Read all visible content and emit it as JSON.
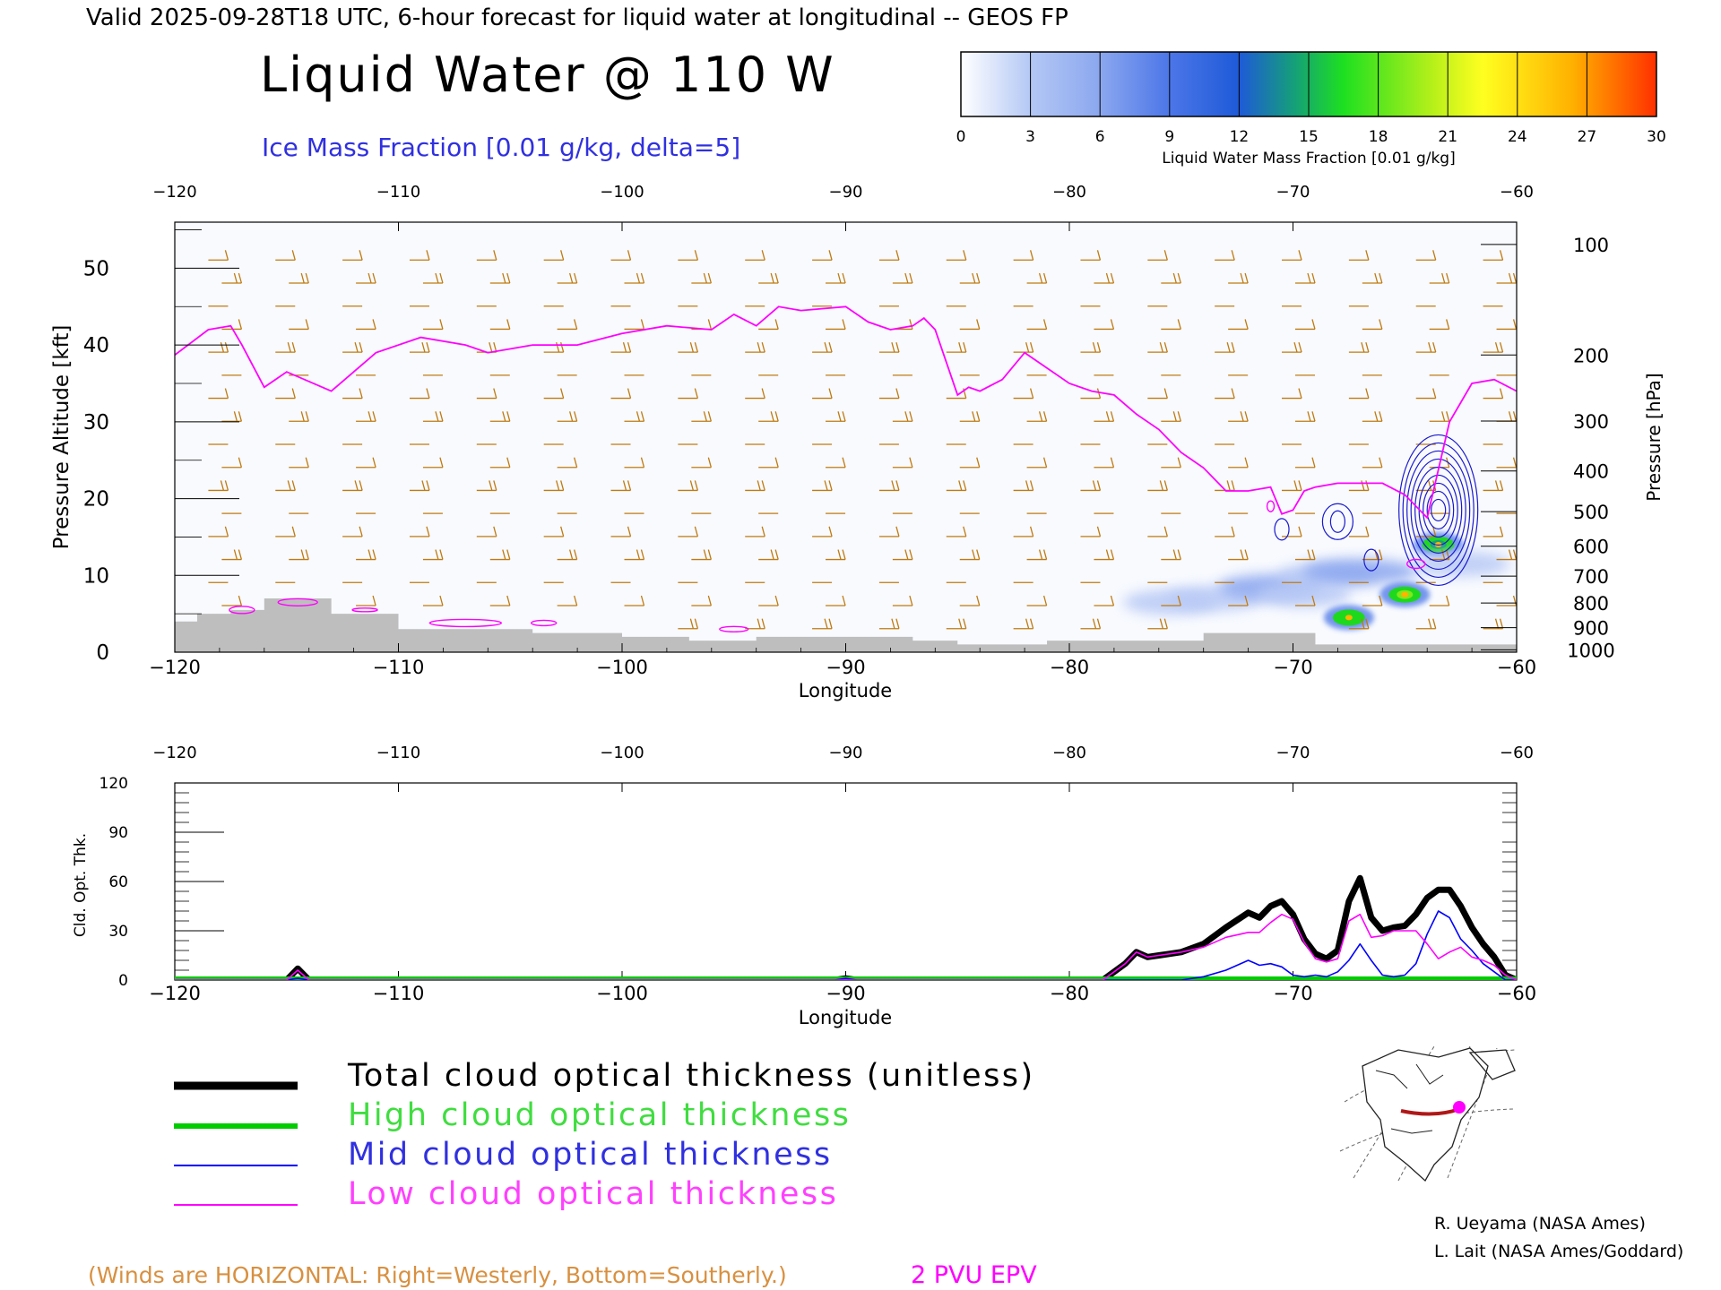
{
  "header": {
    "valid_line": "Valid 2025-09-28T18 UTC, 6-hour forecast for liquid water at longitudinal -- GEOS FP",
    "title": "Liquid Water @ 110 W",
    "ice_label": "Ice Mass Fraction [0.01 g/kg, delta=5]"
  },
  "colorbar": {
    "ticks": [
      "0",
      "3",
      "6",
      "9",
      "12",
      "15",
      "18",
      "21",
      "24",
      "27",
      "30"
    ],
    "label": "Liquid Water Mass Fraction [0.01 g/kg]",
    "colors": [
      "#f2f5fc",
      "#b8c9f5",
      "#8aa6ef",
      "#4a74e6",
      "#1f5ed6",
      "#13a07a",
      "#1ed81e",
      "#7fe81a",
      "#f0f020",
      "#ffb400",
      "#ff5a00"
    ]
  },
  "colors": {
    "wind": "#c07a10",
    "epv": "#ff00ff",
    "ice": "#1a1acc",
    "terrain": "#bebebe",
    "total": "#000000",
    "high": "#00cc00",
    "mid": "#0000ff",
    "low": "#ff00ff"
  },
  "chart_data": [
    {
      "type": "heatmap",
      "xlabel": "Longitude",
      "ylabel": "Pressure Altitude [kft]",
      "y2label": "Pressure [hPa]",
      "xlim": [
        -120,
        -60
      ],
      "ylim": [
        0,
        56
      ],
      "x_ticks": [
        "−120",
        "−110",
        "−100",
        "−90",
        "−80",
        "−70",
        "−60"
      ],
      "x_tick_values": [
        -120,
        -110,
        -100,
        -90,
        -80,
        -70,
        -60
      ],
      "y_ticks": [
        "0",
        "10",
        "20",
        "30",
        "40",
        "50"
      ],
      "y_tick_values": [
        0,
        10,
        20,
        30,
        40,
        50
      ],
      "pressure_ticks": [
        {
          "label": "100",
          "kft": 53.1
        },
        {
          "label": "200",
          "kft": 38.7
        },
        {
          "label": "300",
          "kft": 30.1
        },
        {
          "label": "400",
          "kft": 23.6
        },
        {
          "label": "500",
          "kft": 18.3
        },
        {
          "label": "600",
          "kft": 13.8
        },
        {
          "label": "700",
          "kft": 9.9
        },
        {
          "label": "800",
          "kft": 6.4
        },
        {
          "label": "900",
          "kft": 3.2
        },
        {
          "label": "1000",
          "kft": 0.3
        }
      ],
      "epv_2pvu_tropopause": {
        "lon": [
          -120,
          -118.5,
          -117.5,
          -117,
          -116,
          -115,
          -113,
          -111,
          -109,
          -107,
          -106,
          -104,
          -102,
          -100,
          -98,
          -96,
          -95,
          -94,
          -93,
          -92,
          -90,
          -89,
          -88,
          -87,
          -86.5,
          -86,
          -85,
          -84.5,
          -84,
          -83,
          -82,
          -81,
          -80,
          -79,
          -78,
          -77,
          -76,
          -75,
          -74,
          -73,
          -72,
          -71,
          -70.5,
          -70,
          -69.5,
          -69,
          -68,
          -67,
          -66,
          -65,
          -64,
          -63,
          -62,
          -61,
          -60
        ],
        "kft": [
          38.7,
          42,
          42.5,
          40,
          34.5,
          36.5,
          34,
          39,
          41,
          40,
          39,
          40,
          40,
          41.5,
          42.5,
          42,
          44,
          42.5,
          45,
          44.5,
          45,
          43,
          42,
          42.5,
          43.5,
          42,
          33.5,
          34.5,
          34,
          35.5,
          39,
          37,
          35,
          34,
          33.5,
          31,
          29,
          26,
          24,
          21,
          21,
          21.5,
          18,
          18.5,
          21,
          21.5,
          22,
          22,
          22,
          20.5,
          17.5,
          30,
          35,
          35.5,
          34
        ]
      },
      "terrain_steps": {
        "lon": [
          -120,
          -119,
          -117.5,
          -116,
          -114,
          -113,
          -110,
          -107,
          -104,
          -100,
          -97,
          -94,
          -90,
          -87,
          -85,
          -83,
          -81,
          -79,
          -74,
          -70,
          -69,
          -60
        ],
        "kft": [
          4,
          5,
          5.5,
          7,
          7,
          5,
          3,
          3,
          2.5,
          2,
          1.5,
          2,
          2,
          1.5,
          1,
          1,
          1.5,
          1.5,
          2.5,
          2.5,
          1,
          1
        ]
      },
      "liquid_water_blobs": [
        {
          "lon": -75.5,
          "kft": 6.5,
          "value": 4
        },
        {
          "lon": -73.5,
          "kft": 7,
          "value": 5
        },
        {
          "lon": -71,
          "kft": 8.5,
          "value": 6
        },
        {
          "lon": -69.5,
          "kft": 7.5,
          "value": 4
        },
        {
          "lon": -68.5,
          "kft": 10,
          "value": 5
        },
        {
          "lon": -67,
          "kft": 10.5,
          "value": 8
        },
        {
          "lon": -67.5,
          "kft": 4.5,
          "value": 20
        },
        {
          "lon": -65,
          "kft": 7.5,
          "value": 22
        },
        {
          "lon": -63.5,
          "kft": 14,
          "value": 17
        },
        {
          "lon": -62.5,
          "kft": 11.5,
          "value": 5
        }
      ],
      "ice_contour_centers": [
        {
          "lon": -63.5,
          "kft": 18.5,
          "max": 45
        },
        {
          "lon": -68,
          "kft": 17,
          "max": 10
        },
        {
          "lon": -70.5,
          "kft": 16,
          "max": 5
        },
        {
          "lon": -66.5,
          "kft": 12,
          "max": 5
        }
      ],
      "winds_note": "(Winds are HORIZONTAL: Right=Westerly, Bottom=Southerly.)",
      "epv_label": "2 PVU EPV"
    },
    {
      "type": "line",
      "xlabel": "Longitude",
      "ylabel": "Cld. Opt. Thk.",
      "xlim": [
        -120,
        -60
      ],
      "ylim": [
        0,
        120
      ],
      "x_ticks": [
        "−120",
        "−110",
        "−100",
        "−90",
        "−80",
        "−70",
        "−60"
      ],
      "x_tick_values": [
        -120,
        -110,
        -100,
        -90,
        -80,
        -70,
        -60
      ],
      "y_ticks": [
        "0",
        "30",
        "60",
        "90",
        "120"
      ],
      "y_tick_values": [
        0,
        30,
        60,
        90,
        120
      ],
      "x": [
        -120,
        -115,
        -114.5,
        -114,
        -113.5,
        -100,
        -90.5,
        -90,
        -89.5,
        -80,
        -78.5,
        -77.5,
        -77,
        -76.5,
        -76,
        -75.5,
        -75,
        -74,
        -73,
        -72,
        -71.5,
        -71,
        -70.5,
        -70,
        -69.5,
        -69,
        -68.5,
        -68,
        -67.5,
        -67,
        -66.5,
        -66,
        -65.5,
        -65,
        -64.5,
        -64,
        -63.5,
        -63,
        -62.5,
        -62,
        -61.5,
        -61,
        -60.5,
        -60
      ],
      "series": [
        {
          "name": "Total cloud optical thickness (unitless)",
          "values": [
            0,
            0,
            7,
            0,
            0,
            0,
            0,
            1,
            0,
            0,
            0,
            10,
            17,
            14,
            15,
            16,
            17,
            22,
            32,
            41,
            38,
            45,
            48,
            40,
            25,
            16,
            13,
            18,
            48,
            62,
            38,
            30,
            32,
            33,
            40,
            50,
            55,
            55,
            45,
            32,
            22,
            14,
            3,
            0
          ]
        },
        {
          "name": "High cloud optical thickness",
          "values": [
            0,
            0,
            0,
            0,
            0,
            0,
            0,
            0,
            0,
            0,
            0,
            0,
            0,
            0,
            0,
            0,
            0,
            0,
            0,
            0,
            0,
            0,
            0,
            0,
            0,
            0,
            0,
            0,
            0,
            0,
            0,
            0,
            0,
            0,
            0,
            0,
            0,
            0,
            0,
            0,
            0,
            0,
            0,
            0
          ]
        },
        {
          "name": "Mid cloud optical thickness",
          "values": [
            0,
            0,
            1,
            0,
            0,
            0,
            0,
            1,
            0,
            0,
            0,
            0,
            0,
            0,
            0,
            0,
            0,
            2,
            6,
            12,
            9,
            10,
            8,
            3,
            2,
            3,
            2,
            5,
            12,
            22,
            12,
            3,
            2,
            3,
            10,
            28,
            42,
            38,
            25,
            18,
            10,
            5,
            0,
            0
          ]
        },
        {
          "name": "Low cloud optical thickness",
          "values": [
            0,
            0,
            6,
            0,
            0,
            0,
            0,
            0,
            0,
            0,
            0,
            10,
            17,
            14,
            15,
            16,
            17,
            20,
            26,
            29,
            29,
            35,
            40,
            37,
            23,
            13,
            11,
            13,
            36,
            40,
            26,
            27,
            30,
            30,
            30,
            22,
            13,
            17,
            20,
            14,
            12,
            9,
            3,
            0
          ]
        }
      ]
    }
  ],
  "legend": {
    "total": "Total cloud optical thickness (unitless)",
    "high": "High cloud optical thickness",
    "mid": "Mid cloud optical thickness",
    "low": "Low cloud optical thickness"
  },
  "credits": {
    "line1": "R. Ueyama (NASA Ames)",
    "line2": "L. Lait (NASA Ames/Goddard)"
  }
}
